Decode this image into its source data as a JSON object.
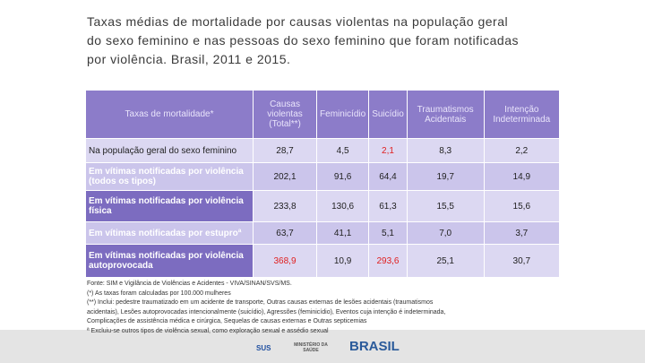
{
  "header": {
    "title_lines": [
      "Taxas médias de mortalidade por causas violentas na população geral",
      "do sexo feminino e nas pessoas do sexo feminino que foram notificadas",
      "por violência. Brasil, 2011 e 2015."
    ]
  },
  "table": {
    "columns": [
      "Taxas de mortalidade*",
      "Causas violentas (Total**)",
      "Feminicídio",
      "Suicídio",
      "Traumatismos Acidentais",
      "Intenção Indeterminada"
    ],
    "rows": [
      [
        "Na população geral do sexo feminino",
        "28,7",
        "4,5",
        "2,1",
        "8,3",
        "2,2"
      ],
      [
        "Em vítimas notificadas por violência (todos os tipos)",
        "202,1",
        "91,6",
        "64,4",
        "19,7",
        "14,9"
      ],
      [
        "Em vítimas notificadas por violência física",
        "233,8",
        "130,6",
        "61,3",
        "15,5",
        "15,6"
      ],
      [
        "Em vítimas notificadas por estuproª",
        "63,7",
        "41,1",
        "5,1",
        "7,0",
        "3,7"
      ],
      [
        "Em vítimas notificadas por violência autoprovocada",
        "368,9",
        "10,9",
        "293,6",
        "25,1",
        "30,7"
      ]
    ]
  },
  "footnotes": [
    "Fonte: SIM e Vigilância de Violências e Acidentes - VIVA/SINAN/SVS/MS.",
    "(*) As taxas foram calculadas por 100.000 mulheres",
    "(**) Inclui: pedestre traumatizado em um acidente de transporte, Outras causas externas de lesões acidentais (traumatismos",
    "acidentais), Lesões autoprovocadas intencionalmente (suicídio), Agressões (feminicídio), Eventos cuja intenção é indeterminada,",
    "Complicações de assistência médica e cirúrgica, Sequelas de causas externas e Outras septicemias",
    "ª Excluiu-se outros tipos de violência sexual, como exploração sexual e assédio sexual"
  ],
  "footer": {
    "logos": [
      "SUS",
      "MINISTÉRIO DA SAÚDE",
      "BRASIL"
    ]
  }
}
